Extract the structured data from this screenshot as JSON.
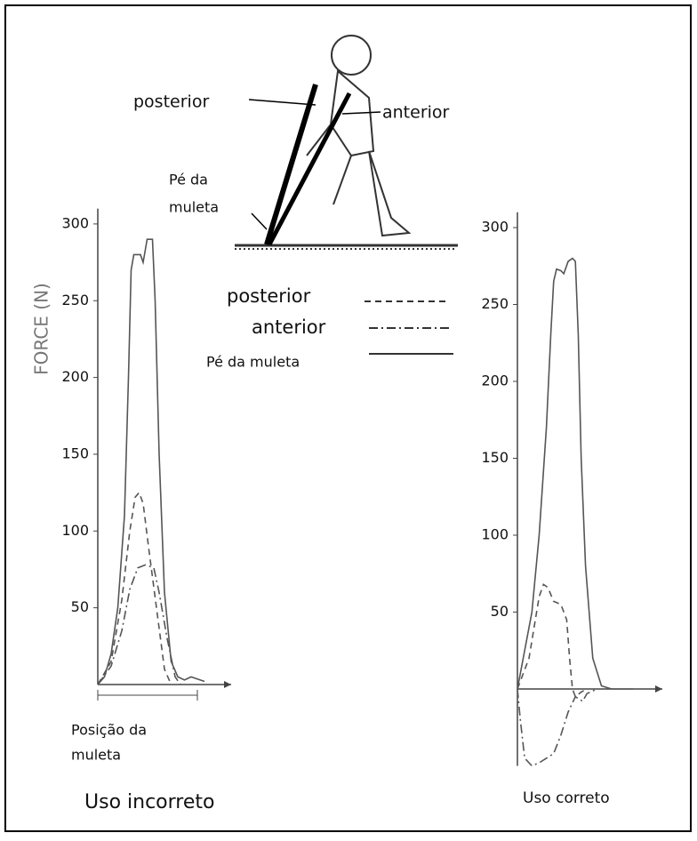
{
  "illustration": {
    "posterior": "posterior",
    "anterior": "anterior",
    "foot": [
      "Pé da",
      "muleta"
    ]
  },
  "legend": [
    {
      "name": "posterior",
      "dash": "7,5"
    },
    {
      "name": "anterior",
      "dash": "10,4,2,4"
    },
    {
      "name": "Pé da muleta",
      "dash": "none"
    }
  ],
  "chart_data": [
    {
      "type": "line",
      "y_label": "FORCE (N)",
      "ylim": [
        0,
        310
      ],
      "yticks": [
        50,
        100,
        150,
        200,
        250,
        300
      ],
      "xlim": [
        0,
        100
      ],
      "annotation": [
        "Posição da",
        "muleta"
      ],
      "caption": "Uso incorreto",
      "color": "#555555",
      "series": [
        {
          "legend": 0,
          "x": [
            0,
            10,
            18,
            24,
            28,
            31,
            34,
            38,
            44,
            50,
            55
          ],
          "values": [
            0,
            15,
            55,
            100,
            122,
            125,
            118,
            90,
            50,
            10,
            0
          ]
        },
        {
          "legend": 1,
          "x": [
            0,
            10,
            18,
            24,
            30,
            36,
            42,
            46,
            52,
            58,
            62
          ],
          "values": [
            0,
            12,
            35,
            62,
            76,
            78,
            76,
            60,
            30,
            5,
            0
          ]
        },
        {
          "legend": 2,
          "x": [
            0,
            5,
            10,
            15,
            20,
            23,
            25,
            27,
            32,
            34,
            37,
            41,
            43,
            46,
            50,
            55,
            60,
            65,
            70,
            80
          ],
          "values": [
            0,
            5,
            20,
            50,
            110,
            200,
            270,
            280,
            280,
            275,
            290,
            290,
            250,
            150,
            60,
            15,
            5,
            3,
            5,
            2
          ]
        }
      ]
    },
    {
      "type": "line",
      "ylim": [
        -50,
        310
      ],
      "yticks": [
        50,
        100,
        150,
        200,
        250,
        300
      ],
      "xlim": [
        0,
        100
      ],
      "caption": "Uso correto",
      "color": "#555555",
      "series": [
        {
          "legend": 0,
          "x": [
            0,
            8,
            15,
            18,
            21,
            25,
            30,
            34,
            36,
            38,
            40,
            44,
            48
          ],
          "values": [
            0,
            20,
            60,
            68,
            66,
            57,
            55,
            45,
            20,
            0,
            -5,
            -2,
            0
          ]
        },
        {
          "legend": 1,
          "x": [
            0,
            2,
            5,
            10,
            15,
            25,
            30,
            35,
            40,
            45,
            48,
            55
          ],
          "values": [
            0,
            -20,
            -45,
            -50,
            -48,
            -42,
            -30,
            -15,
            -5,
            -8,
            -3,
            0
          ]
        },
        {
          "legend": 2,
          "x": [
            0,
            10,
            15,
            20,
            23,
            25,
            27,
            30,
            32,
            35,
            38,
            40,
            42,
            44,
            47,
            52,
            58,
            65,
            80
          ],
          "values": [
            0,
            50,
            100,
            170,
            230,
            265,
            273,
            272,
            270,
            278,
            280,
            278,
            230,
            150,
            80,
            20,
            2,
            0,
            0
          ]
        }
      ]
    }
  ]
}
